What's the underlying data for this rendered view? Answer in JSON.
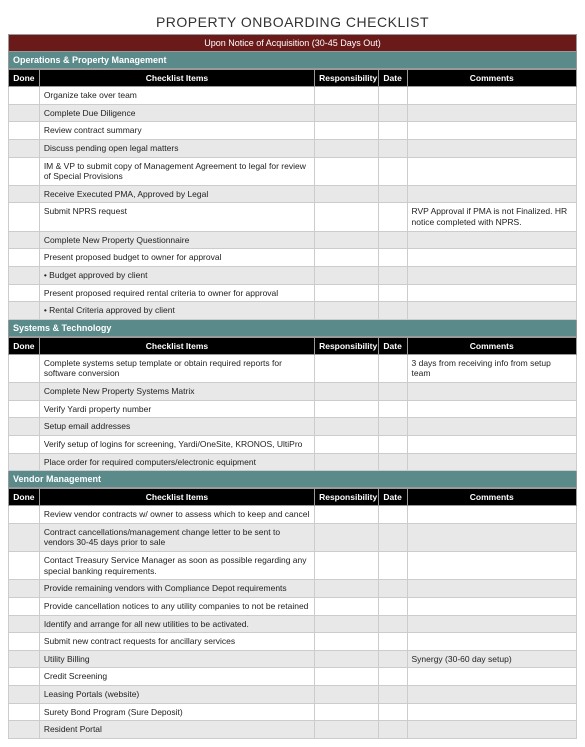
{
  "title": "PROPERTY ONBOARDING CHECKLIST",
  "subtitle": "Upon Notice of Acquisition (30-45 Days Out)",
  "columns": {
    "done": "Done",
    "items": "Checklist Items",
    "responsibility": "Responsibility",
    "date": "Date",
    "comments": "Comments"
  },
  "colors": {
    "subtitle_bg": "#6b1a1a",
    "section_bg": "#5a8a8a",
    "header_bg": "#000000",
    "row_alt_bg": "#e8e8e8"
  },
  "sections": [
    {
      "name": "Operations & Property Management",
      "rows": [
        {
          "item": "Organize take over team",
          "comment": ""
        },
        {
          "item": "Complete Due Diligence",
          "comment": ""
        },
        {
          "item": "Review contract summary",
          "comment": ""
        },
        {
          "item": "Discuss pending open legal matters",
          "comment": ""
        },
        {
          "item": "IM & VP to submit copy of Management Agreement to legal for review of Special Provisions",
          "comment": ""
        },
        {
          "item": "Receive Executed PMA, Approved by Legal",
          "comment": ""
        },
        {
          "item": "Submit NPRS request",
          "comment": "RVP Approval if PMA is not Finalized. HR notice completed with NPRS."
        },
        {
          "item": "Complete New Property Questionnaire",
          "comment": ""
        },
        {
          "item": "Present proposed budget to owner for approval",
          "comment": ""
        },
        {
          "item": "•  Budget approved by client",
          "comment": ""
        },
        {
          "item": "Present proposed required rental criteria to owner for approval",
          "comment": ""
        },
        {
          "item": "•  Rental Criteria approved by client",
          "comment": ""
        }
      ]
    },
    {
      "name": "Systems & Technology",
      "rows": [
        {
          "item": "Complete systems setup template or obtain required reports for software conversion",
          "comment": "3 days from receiving info from setup team"
        },
        {
          "item": "Complete New Property Systems Matrix",
          "comment": ""
        },
        {
          "item": "Verify Yardi property number",
          "comment": ""
        },
        {
          "item": "Setup email addresses",
          "comment": ""
        },
        {
          "item": "Verify setup of logins for screening, Yardi/OneSite, KRONOS, UltiPro",
          "comment": ""
        },
        {
          "item": "Place order for required computers/electronic equipment",
          "comment": ""
        }
      ]
    },
    {
      "name": "Vendor Management",
      "rows": [
        {
          "item": "Review vendor contracts w/ owner to assess which to keep and cancel",
          "comment": ""
        },
        {
          "item": "Contract cancellations/management change letter to be sent to vendors 30-45 days prior to sale",
          "comment": ""
        },
        {
          "item": "Contact Treasury Service Manager as soon as possible regarding any special banking requirements.",
          "comment": ""
        },
        {
          "item": "Provide remaining vendors with Compliance Depot requirements",
          "comment": ""
        },
        {
          "item": "Provide cancellation notices to any utility companies to not be retained",
          "comment": ""
        },
        {
          "item": "Identify and arrange for all new utilities to be activated.",
          "comment": ""
        },
        {
          "item": "Submit new contract requests for ancillary services",
          "comment": ""
        },
        {
          "item": "Utility Billing",
          "comment": "Synergy (30-60 day setup)"
        },
        {
          "item": "Credit Screening",
          "comment": ""
        },
        {
          "item": "Leasing Portals (website)",
          "comment": ""
        },
        {
          "item": "Surety Bond Program (Sure Deposit)",
          "comment": ""
        },
        {
          "item": "Resident Portal",
          "comment": ""
        }
      ]
    }
  ]
}
